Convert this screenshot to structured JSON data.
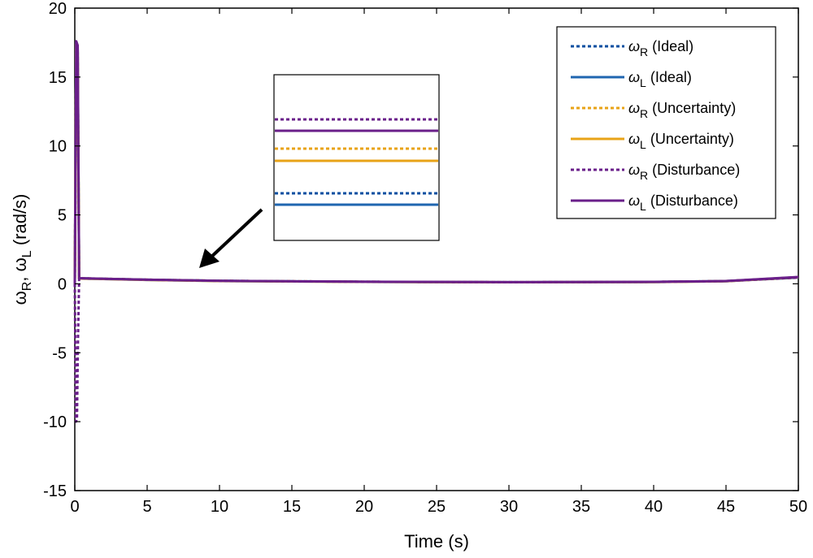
{
  "chart_data": {
    "type": "line",
    "title": "",
    "xlabel": "Time (s)",
    "ylabel_parts": {
      "w1": "ω",
      "s1": "R",
      "sep": ", ",
      "w2": "ω",
      "s2": "L",
      "unit": " (rad/s)"
    },
    "xlim": [
      0,
      50
    ],
    "ylim": [
      -15,
      20
    ],
    "xticks": [
      0,
      5,
      10,
      15,
      20,
      25,
      30,
      35,
      40,
      45,
      50
    ],
    "yticks": [
      -15,
      -10,
      -5,
      0,
      5,
      10,
      15,
      20
    ],
    "grid": false,
    "legend_position": "top-right",
    "series": [
      {
        "name": "ω_R (Ideal)",
        "symbol": "ω",
        "sub": "R",
        "label": "(Ideal)",
        "color": "#0b4fa0",
        "dash": true,
        "x": [
          0,
          0.1,
          0.2,
          0.3,
          0.5,
          5,
          10,
          20,
          30,
          40,
          45,
          50
        ],
        "y": [
          0,
          17.3,
          16.8,
          0.4,
          0.4,
          0.3,
          0.22,
          0.15,
          0.12,
          0.14,
          0.2,
          0.45
        ]
      },
      {
        "name": "ω_L (Ideal)",
        "symbol": "ω",
        "sub": "L",
        "label": "(Ideal)",
        "color": "#1f66b0",
        "dash": false,
        "x": [
          0,
          0.1,
          0.2,
          0.3,
          0.5,
          5,
          10,
          20,
          30,
          40,
          45,
          50
        ],
        "y": [
          0,
          17.5,
          17,
          0.38,
          0.38,
          0.28,
          0.2,
          0.14,
          0.11,
          0.13,
          0.19,
          0.48
        ]
      },
      {
        "name": "ω_R (Uncertainty)",
        "symbol": "ω",
        "sub": "R",
        "label": "(Uncertainty)",
        "color": "#e8a317",
        "dash": true,
        "x": [
          0,
          0.1,
          0.2,
          0.3,
          0.5,
          5,
          10,
          20,
          30,
          40,
          45,
          50
        ],
        "y": [
          0,
          17,
          16,
          0.4,
          0.4,
          0.3,
          0.22,
          0.15,
          0.12,
          0.14,
          0.2,
          0.45
        ]
      },
      {
        "name": "ω_L (Uncertainty)",
        "symbol": "ω",
        "sub": "L",
        "label": "(Uncertainty)",
        "color": "#e8a317",
        "dash": false,
        "x": [
          0,
          0.1,
          0.2,
          0.3,
          0.5,
          5,
          10,
          20,
          30,
          40,
          45,
          50
        ],
        "y": [
          0,
          17.4,
          16.9,
          0.38,
          0.38,
          0.28,
          0.2,
          0.14,
          0.11,
          0.13,
          0.19,
          0.48
        ]
      },
      {
        "name": "ω_R (Disturbance)",
        "symbol": "ω",
        "sub": "R",
        "label": "(Disturbance)",
        "color": "#6a1f8a",
        "dash": true,
        "x": [
          0,
          0.08,
          0.15,
          0.22,
          0.3,
          0.5,
          5,
          10,
          20,
          30,
          40,
          45,
          50
        ],
        "y": [
          0,
          -10,
          -9.8,
          -4,
          0.4,
          0.4,
          0.3,
          0.22,
          0.15,
          0.12,
          0.14,
          0.2,
          0.45
        ]
      },
      {
        "name": "ω_L (Disturbance)",
        "symbol": "ω",
        "sub": "L",
        "label": "(Disturbance)",
        "color": "#6a1f8a",
        "dash": false,
        "x": [
          0,
          0.1,
          0.2,
          0.3,
          0.5,
          5,
          10,
          20,
          30,
          40,
          45,
          50
        ],
        "y": [
          0,
          17.6,
          17.3,
          0.4,
          0.4,
          0.3,
          0.22,
          0.15,
          0.12,
          0.14,
          0.2,
          0.5
        ]
      }
    ],
    "inset_order": [
      4,
      5,
      2,
      3,
      0,
      1
    ]
  }
}
